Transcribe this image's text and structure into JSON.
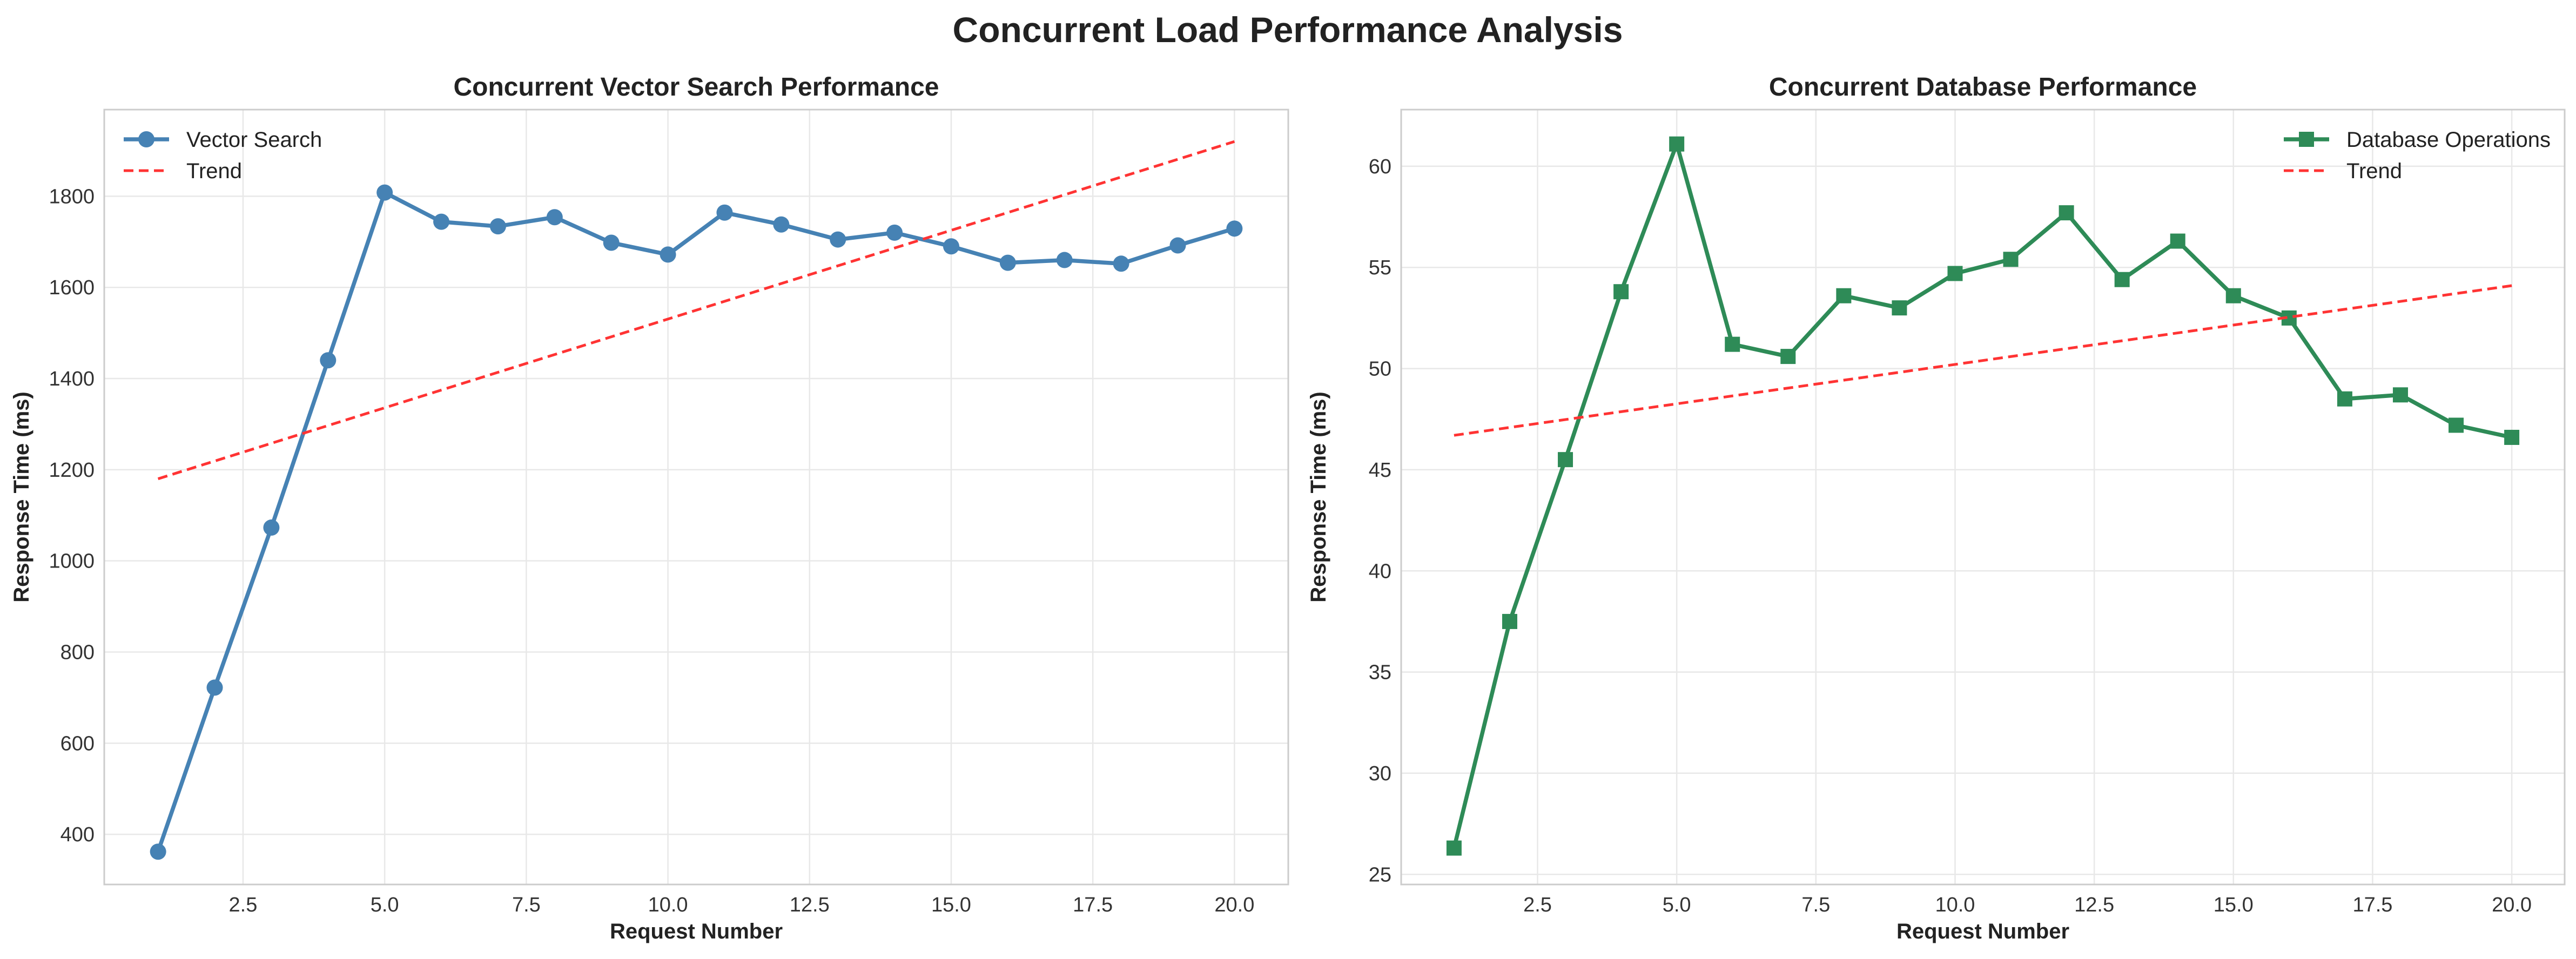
{
  "figure": {
    "suptitle": "Concurrent Load Performance Analysis"
  },
  "chart_data": [
    {
      "type": "line",
      "title": "Concurrent Vector Search Performance",
      "xlabel": "Request Number",
      "ylabel": "Response Time (ms)",
      "xlim": [
        0.05,
        20.95
      ],
      "ylim": [
        290,
        1990
      ],
      "xticks": [
        2.5,
        5.0,
        7.5,
        10.0,
        12.5,
        15.0,
        17.5,
        20.0
      ],
      "xtick_labels": [
        "2.5",
        "5.0",
        "7.5",
        "10.0",
        "12.5",
        "15.0",
        "17.5",
        "20.0"
      ],
      "yticks": [
        400,
        600,
        800,
        1000,
        1200,
        1400,
        1600,
        1800
      ],
      "ytick_labels": [
        "400",
        "600",
        "800",
        "1000",
        "1200",
        "1400",
        "1600",
        "1800"
      ],
      "grid": true,
      "legend_position": "upper left",
      "series": [
        {
          "name": "Vector Search",
          "style": "solid",
          "marker": "circle",
          "color": "#4682B4",
          "x": [
            1,
            2,
            3,
            4,
            5,
            6,
            7,
            8,
            9,
            10,
            11,
            12,
            13,
            14,
            15,
            16,
            17,
            18,
            19,
            20
          ],
          "y": [
            362,
            722,
            1073,
            1440,
            1808,
            1744,
            1734,
            1754,
            1698,
            1672,
            1764,
            1738,
            1705,
            1720,
            1690,
            1654,
            1660,
            1652,
            1692,
            1729
          ]
        },
        {
          "name": "Trend",
          "style": "dashed",
          "marker": "none",
          "color": "#FF3333",
          "x": [
            1,
            20
          ],
          "y": [
            1180,
            1920
          ]
        }
      ]
    },
    {
      "type": "line",
      "title": "Concurrent Database Performance",
      "xlabel": "Request Number",
      "ylabel": "Response Time (ms)",
      "xlim": [
        0.05,
        20.95
      ],
      "ylim": [
        24.5,
        62.8
      ],
      "xticks": [
        2.5,
        5.0,
        7.5,
        10.0,
        12.5,
        15.0,
        17.5,
        20.0
      ],
      "xtick_labels": [
        "2.5",
        "5.0",
        "7.5",
        "10.0",
        "12.5",
        "15.0",
        "17.5",
        "20.0"
      ],
      "yticks": [
        25,
        30,
        35,
        40,
        45,
        50,
        55,
        60
      ],
      "ytick_labels": [
        "25",
        "30",
        "35",
        "40",
        "45",
        "50",
        "55",
        "60"
      ],
      "grid": true,
      "legend_position": "upper right",
      "series": [
        {
          "name": "Database Operations",
          "style": "solid",
          "marker": "square",
          "color": "#2E8B57",
          "x": [
            1,
            2,
            3,
            4,
            5,
            6,
            7,
            8,
            9,
            10,
            11,
            12,
            13,
            14,
            15,
            16,
            17,
            18,
            19,
            20
          ],
          "y": [
            26.3,
            37.5,
            45.5,
            53.8,
            61.1,
            51.2,
            50.6,
            53.6,
            53.0,
            54.7,
            55.4,
            57.7,
            54.4,
            56.3,
            53.6,
            52.5,
            48.5,
            48.7,
            47.2,
            46.6
          ]
        },
        {
          "name": "Trend",
          "style": "dashed",
          "marker": "none",
          "color": "#FF3333",
          "x": [
            1,
            20
          ],
          "y": [
            46.7,
            54.1
          ]
        }
      ]
    }
  ]
}
